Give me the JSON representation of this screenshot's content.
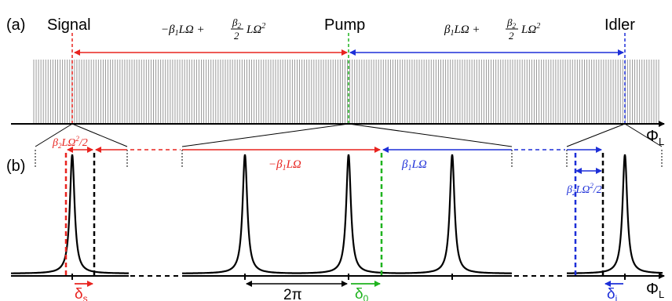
{
  "panel_a": {
    "label": "(a)",
    "signal_label": "Signal",
    "pump_label": "Pump",
    "idler_label": "Idler",
    "axis_label": "ΦL",
    "left_span_label": "−β₁LΩ + (β₂/2)LΩ²",
    "right_span_label": "β₁LΩ + (β₂/2)LΩ²"
  },
  "panel_b": {
    "label": "(b)",
    "axis_label": "ΦL",
    "signal_offset_label": "β₂LΩ²/2",
    "idler_offset_label": "β₂LΩ²/2",
    "left_shift_label": "−β₁LΩ",
    "right_shift_label": "β₁LΩ",
    "fsr_label": "2π",
    "delta_s": "δs",
    "delta_0": "δ0",
    "delta_i": "δi"
  },
  "colors": {
    "signal": "#e8231f",
    "pump": "#1fb31f",
    "idler": "#1d2fd8",
    "comb": "#9a9a9a",
    "ink": "#000000"
  }
}
